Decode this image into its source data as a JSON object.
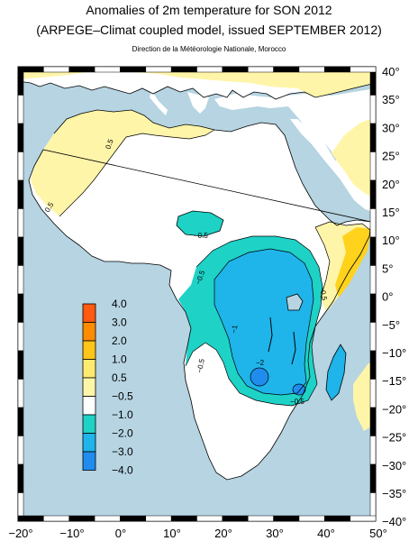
{
  "header": {
    "title_line1": "Anomalies of 2m temperature for SON 2012",
    "title_line2": "(ARPEGE–Climat coupled model, issued SEPTEMBER 2012)",
    "credit": "Direction de la Météorologie Nationale, Morocco"
  },
  "map": {
    "lon_labels": [
      "−20°",
      "−10°",
      "0°",
      "10°",
      "20°",
      "30°",
      "40°",
      "50°"
    ],
    "lat_labels": [
      "40°",
      "35°",
      "30°",
      "25°",
      "20°",
      "15°",
      "10°",
      "5°",
      "0°",
      "−5°",
      "−10°",
      "−15°",
      "−20°",
      "−25°",
      "−30°",
      "−35°",
      "−40°"
    ],
    "contour_labels": [
      "0.5",
      "0.5",
      "−0.5",
      "−0.5",
      "−0.5",
      "−0.5",
      "−1",
      "−2",
      "−0.5"
    ],
    "colors": {
      "ocean": "#b6d4e2",
      "land_neutral": "#ffffff",
      "warm_0_5_1": "#fff5a8",
      "warm_1_2": "#ffd21c",
      "cold_0_5_1": "#1ed2c6",
      "cold_1_2": "#1fb4ea",
      "cold_2_3": "#1f8cee"
    }
  },
  "legend": {
    "labels": [
      "4.0",
      "3.0",
      "2.0",
      "1.0",
      "0.5",
      "−0.5",
      "−1.0",
      "−2.0",
      "−3.0",
      "−4.0"
    ],
    "colors": [
      "#ff5a10",
      "#ff8c00",
      "#ffc51a",
      "#ffea70",
      "#fff5a8",
      "#ffffff",
      "#1ed2c6",
      "#1fb4ea",
      "#1f8cee",
      "#1a64e6"
    ]
  }
}
